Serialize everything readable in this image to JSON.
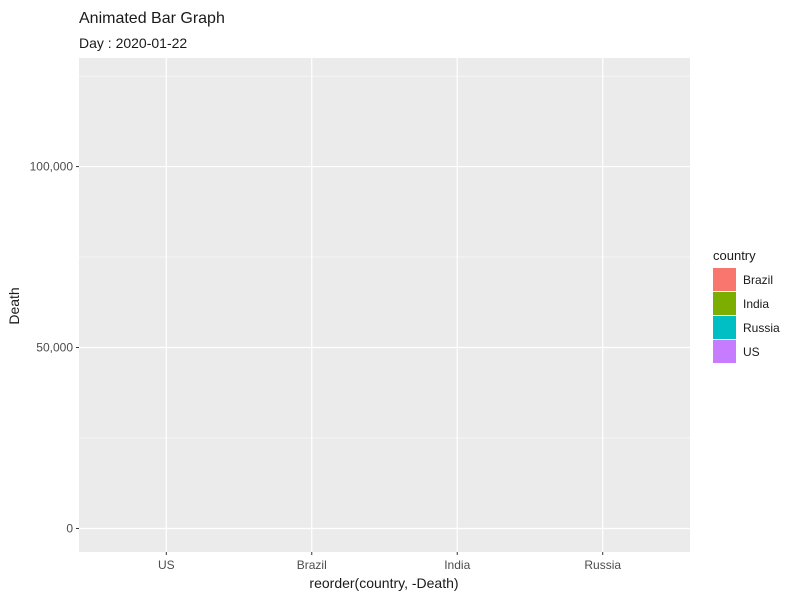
{
  "chart_data": {
    "type": "bar",
    "title": "Animated Bar Graph",
    "subtitle": "Day : 2020-01-22",
    "xlabel": "reorder(country, -Death)",
    "ylabel": "Death",
    "categories": [
      "US",
      "Brazil",
      "India",
      "Russia"
    ],
    "values": [
      0,
      0,
      0,
      0
    ],
    "ylim": [
      -6500,
      130000
    ],
    "yticks": [
      0,
      50000,
      100000
    ],
    "ytick_labels": [
      "0",
      "50,000",
      "100,000"
    ],
    "grid": true,
    "legend": {
      "title": "country",
      "position": "right",
      "entries": [
        {
          "label": "Brazil",
          "color": "#F8766D"
        },
        {
          "label": "India",
          "color": "#7CAE00"
        },
        {
          "label": "Russia",
          "color": "#00BFC4"
        },
        {
          "label": "US",
          "color": "#C77CFF"
        }
      ]
    },
    "colors": {
      "panel_background": "#EBEBEB",
      "grid_major": "#FFFFFF",
      "grid_minor": "#F5F5F5"
    }
  }
}
